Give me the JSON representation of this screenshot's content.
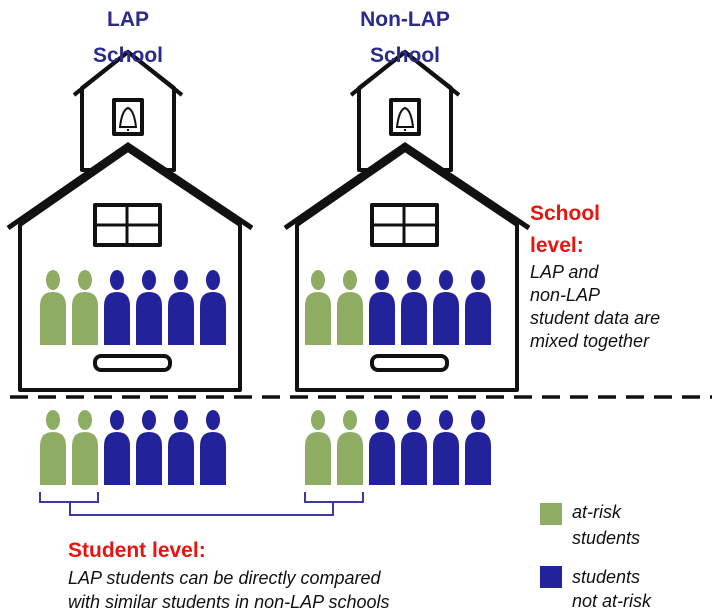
{
  "schools": [
    {
      "name_lines": [
        "LAP",
        "School"
      ]
    },
    {
      "name_lines": [
        "Non-LAP",
        "School"
      ]
    }
  ],
  "school_level": {
    "heading_lines": [
      "School",
      "level:"
    ],
    "description_lines": [
      "LAP and",
      "non-LAP",
      "student data are",
      "mixed together"
    ]
  },
  "student_level": {
    "heading": "Student level:",
    "description_lines": [
      "LAP students can be directly compared",
      "with similar students in non-LAP schools"
    ]
  },
  "legend": [
    {
      "label_lines": [
        "at-risk",
        "students"
      ],
      "color": "#8fad62"
    },
    {
      "label_lines": [
        "students",
        "not at-risk"
      ],
      "color": "#22229a"
    }
  ]
}
